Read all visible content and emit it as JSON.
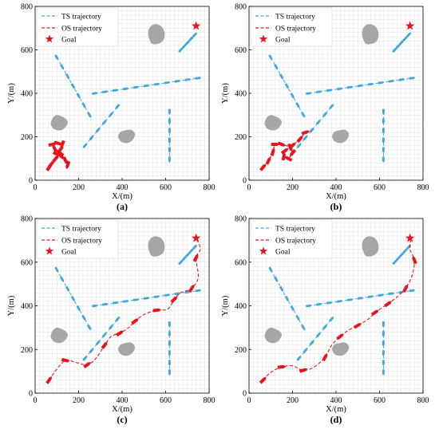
{
  "colors": {
    "ts": "#41a7dd",
    "os": "#e8141b",
    "goal": "#e8141b",
    "obstacle": "#a6a6a6",
    "grid": "#e3e3e3",
    "axis": "#000000"
  },
  "legend_labels": {
    "ts": "TS  trajectory",
    "os": "OS  trajectory",
    "goal": "Goal"
  },
  "chart_data": [
    {
      "type": "line",
      "panel_label": "(a)",
      "xlabel": "X/(m)",
      "ylabel": "Y/(m)",
      "xlim": [
        0,
        800
      ],
      "ylim": [
        0,
        800
      ],
      "xticks": [
        0,
        200,
        400,
        600,
        800
      ],
      "yticks": [
        0,
        200,
        400,
        600,
        800
      ],
      "grid": true,
      "legend_position": "top-left",
      "goal": [
        740,
        710
      ],
      "obstacles": [
        [
          [
            520,
            665
          ],
          [
            535,
            630
          ],
          [
            565,
            628
          ],
          [
            590,
            645
          ],
          [
            595,
            680
          ],
          [
            578,
            710
          ],
          [
            548,
            718
          ],
          [
            525,
            700
          ]
        ],
        [
          [
            100,
            300
          ],
          [
            130,
            290
          ],
          [
            150,
            270
          ],
          [
            140,
            245
          ],
          [
            118,
            230
          ],
          [
            88,
            235
          ],
          [
            72,
            258
          ],
          [
            80,
            285
          ]
        ],
        [
          [
            408,
            228
          ],
          [
            440,
            232
          ],
          [
            458,
            215
          ],
          [
            452,
            190
          ],
          [
            428,
            172
          ],
          [
            398,
            176
          ],
          [
            382,
            198
          ],
          [
            390,
            220
          ]
        ]
      ],
      "ts_trajectories": [
        [
          [
            100,
            565
          ],
          [
            250,
            300
          ]
        ],
        [
          [
            275,
            400
          ],
          [
            750,
            470
          ]
        ],
        [
          [
            230,
            160
          ],
          [
            380,
            340
          ]
        ],
        [
          [
            618,
            315
          ],
          [
            618,
            95
          ]
        ],
        [
          [
            670,
            600
          ],
          [
            735,
            670
          ]
        ]
      ],
      "os_trajectory": [
        [
          65,
          60
        ],
        [
          75,
          75
        ],
        [
          95,
          100
        ],
        [
          115,
          125
        ],
        [
          90,
          145
        ],
        [
          80,
          165
        ],
        [
          105,
          170
        ],
        [
          125,
          165
        ],
        [
          115,
          140
        ],
        [
          100,
          120
        ],
        [
          120,
          110
        ],
        [
          140,
          90
        ],
        [
          150,
          70
        ],
        [
          145,
          55
        ]
      ]
    },
    {
      "type": "line",
      "panel_label": "(b)",
      "xlabel": "X/(m)",
      "ylabel": "Y/(m)",
      "xlim": [
        0,
        800
      ],
      "ylim": [
        0,
        800
      ],
      "xticks": [
        0,
        200,
        400,
        600,
        800
      ],
      "yticks": [
        0,
        200,
        400,
        600,
        800
      ],
      "grid": true,
      "legend_position": "top-left",
      "goal": [
        740,
        710
      ],
      "obstacles": [
        [
          [
            520,
            665
          ],
          [
            535,
            630
          ],
          [
            565,
            628
          ],
          [
            590,
            645
          ],
          [
            595,
            680
          ],
          [
            578,
            710
          ],
          [
            548,
            718
          ],
          [
            525,
            700
          ]
        ],
        [
          [
            100,
            300
          ],
          [
            130,
            290
          ],
          [
            150,
            270
          ],
          [
            140,
            245
          ],
          [
            118,
            230
          ],
          [
            88,
            235
          ],
          [
            72,
            258
          ],
          [
            80,
            285
          ]
        ],
        [
          [
            408,
            228
          ],
          [
            440,
            232
          ],
          [
            458,
            215
          ],
          [
            452,
            190
          ],
          [
            428,
            172
          ],
          [
            398,
            176
          ],
          [
            382,
            198
          ],
          [
            390,
            220
          ]
        ]
      ],
      "ts_trajectories": [
        [
          [
            100,
            565
          ],
          [
            250,
            300
          ]
        ],
        [
          [
            275,
            400
          ],
          [
            750,
            470
          ]
        ],
        [
          [
            230,
            160
          ],
          [
            380,
            340
          ]
        ],
        [
          [
            618,
            315
          ],
          [
            618,
            95
          ]
        ],
        [
          [
            670,
            600
          ],
          [
            735,
            670
          ]
        ]
      ],
      "os_trajectory": [
        [
          65,
          60
        ],
        [
          90,
          90
        ],
        [
          110,
          130
        ],
        [
          120,
          165
        ],
        [
          150,
          165
        ],
        [
          190,
          150
        ],
        [
          200,
          125
        ],
        [
          180,
          100
        ],
        [
          160,
          110
        ],
        [
          165,
          135
        ],
        [
          200,
          160
        ],
        [
          235,
          190
        ],
        [
          260,
          220
        ],
        [
          275,
          225
        ]
      ]
    },
    {
      "type": "line",
      "panel_label": "(c)",
      "xlabel": "X/(m)",
      "ylabel": "Y/(m)",
      "xlim": [
        0,
        800
      ],
      "ylim": [
        0,
        800
      ],
      "xticks": [
        0,
        200,
        400,
        600,
        800
      ],
      "yticks": [
        0,
        200,
        400,
        600,
        800
      ],
      "grid": true,
      "legend_position": "top-left",
      "goal": [
        740,
        710
      ],
      "obstacles": [
        [
          [
            520,
            665
          ],
          [
            535,
            630
          ],
          [
            565,
            628
          ],
          [
            590,
            645
          ],
          [
            595,
            680
          ],
          [
            578,
            710
          ],
          [
            548,
            718
          ],
          [
            525,
            700
          ]
        ],
        [
          [
            100,
            300
          ],
          [
            130,
            290
          ],
          [
            150,
            270
          ],
          [
            140,
            245
          ],
          [
            118,
            230
          ],
          [
            88,
            235
          ],
          [
            72,
            258
          ],
          [
            80,
            285
          ]
        ],
        [
          [
            408,
            228
          ],
          [
            440,
            232
          ],
          [
            458,
            215
          ],
          [
            452,
            190
          ],
          [
            428,
            172
          ],
          [
            398,
            176
          ],
          [
            382,
            198
          ],
          [
            390,
            220
          ]
        ]
      ],
      "ts_trajectories": [
        [
          [
            100,
            565
          ],
          [
            250,
            300
          ]
        ],
        [
          [
            275,
            400
          ],
          [
            750,
            470
          ]
        ],
        [
          [
            230,
            160
          ],
          [
            380,
            340
          ]
        ],
        [
          [
            618,
            315
          ],
          [
            618,
            95
          ]
        ],
        [
          [
            670,
            600
          ],
          [
            735,
            670
          ]
        ]
      ],
      "os_trajectory": [
        [
          65,
          60
        ],
        [
          100,
          110
        ],
        [
          140,
          150
        ],
        [
          190,
          140
        ],
        [
          240,
          130
        ],
        [
          280,
          160
        ],
        [
          320,
          220
        ],
        [
          350,
          260
        ],
        [
          390,
          275
        ],
        [
          430,
          300
        ],
        [
          460,
          330
        ],
        [
          500,
          360
        ],
        [
          560,
          380
        ],
        [
          610,
          385
        ],
        [
          640,
          430
        ],
        [
          670,
          460
        ],
        [
          720,
          480
        ],
        [
          750,
          530
        ],
        [
          740,
          620
        ],
        [
          760,
          660
        ],
        [
          740,
          710
        ]
      ]
    },
    {
      "type": "line",
      "panel_label": "(d)",
      "xlabel": "X/(m)",
      "ylabel": "Y/(m)",
      "xlim": [
        0,
        800
      ],
      "ylim": [
        0,
        800
      ],
      "xticks": [
        0,
        200,
        400,
        600,
        800
      ],
      "yticks": [
        0,
        200,
        400,
        600,
        800
      ],
      "grid": true,
      "legend_position": "top-left",
      "goal": [
        740,
        710
      ],
      "obstacles": [
        [
          [
            520,
            665
          ],
          [
            535,
            630
          ],
          [
            565,
            628
          ],
          [
            590,
            645
          ],
          [
            595,
            680
          ],
          [
            578,
            710
          ],
          [
            548,
            718
          ],
          [
            525,
            700
          ]
        ],
        [
          [
            100,
            300
          ],
          [
            130,
            290
          ],
          [
            150,
            270
          ],
          [
            140,
            245
          ],
          [
            118,
            230
          ],
          [
            88,
            235
          ],
          [
            72,
            258
          ],
          [
            80,
            285
          ]
        ],
        [
          [
            408,
            228
          ],
          [
            440,
            232
          ],
          [
            458,
            215
          ],
          [
            452,
            190
          ],
          [
            428,
            172
          ],
          [
            398,
            176
          ],
          [
            382,
            198
          ],
          [
            390,
            220
          ]
        ]
      ],
      "ts_trajectories": [
        [
          [
            100,
            565
          ],
          [
            250,
            300
          ]
        ],
        [
          [
            275,
            400
          ],
          [
            750,
            470
          ]
        ],
        [
          [
            230,
            160
          ],
          [
            380,
            340
          ]
        ],
        [
          [
            618,
            315
          ],
          [
            618,
            95
          ]
        ],
        [
          [
            670,
            600
          ],
          [
            735,
            670
          ]
        ]
      ],
      "os_trajectory": [
        [
          65,
          60
        ],
        [
          100,
          95
        ],
        [
          150,
          120
        ],
        [
          200,
          125
        ],
        [
          250,
          105
        ],
        [
          300,
          120
        ],
        [
          350,
          165
        ],
        [
          380,
          220
        ],
        [
          420,
          260
        ],
        [
          460,
          290
        ],
        [
          500,
          310
        ],
        [
          550,
          340
        ],
        [
          580,
          370
        ],
        [
          610,
          390
        ],
        [
          640,
          410
        ],
        [
          680,
          440
        ],
        [
          720,
          480
        ],
        [
          750,
          540
        ],
        [
          760,
          610
        ],
        [
          740,
          660
        ],
        [
          745,
          710
        ]
      ]
    }
  ]
}
